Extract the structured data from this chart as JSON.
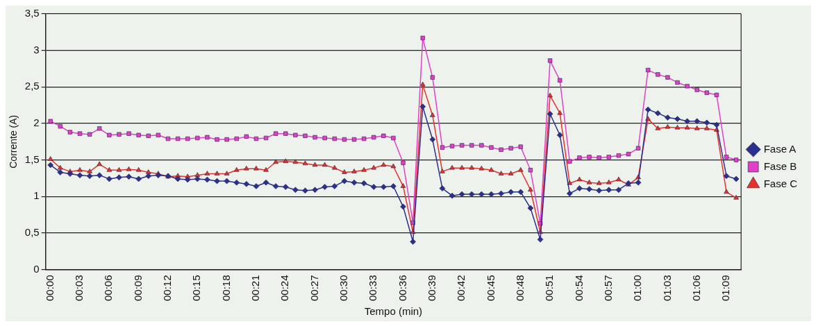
{
  "chart_data": {
    "type": "line",
    "xlabel": "Tempo (min)",
    "ylabel": "Corrente (A)",
    "categories": [
      "00:00",
      null,
      null,
      "00:03",
      null,
      null,
      "00:06",
      null,
      null,
      "00:09",
      null,
      null,
      "00:12",
      null,
      null,
      "00:15",
      null,
      null,
      "00:18",
      null,
      null,
      "00:21",
      null,
      null,
      "00:24",
      null,
      null,
      "00:27",
      null,
      null,
      "00:30",
      null,
      null,
      "00:33",
      null,
      null,
      "00:36",
      null,
      null,
      "00:39",
      null,
      null,
      "00:42",
      null,
      null,
      "00:45",
      null,
      null,
      "00:48",
      null,
      null,
      "00:51",
      null,
      null,
      "00:54",
      null,
      null,
      "00:57",
      null,
      null,
      "01:00",
      null,
      null,
      "01:03",
      null,
      null,
      "01:06",
      null,
      null,
      "01:09",
      null
    ],
    "series": [
      {
        "name": "Fase A",
        "color": "#2b2f8f",
        "marker": "diamond",
        "values": [
          1.43,
          1.33,
          1.31,
          1.29,
          1.28,
          1.29,
          1.24,
          1.26,
          1.27,
          1.24,
          1.28,
          1.29,
          1.28,
          1.24,
          1.23,
          1.24,
          1.23,
          1.21,
          1.21,
          1.19,
          1.17,
          1.14,
          1.19,
          1.14,
          1.13,
          1.09,
          1.08,
          1.09,
          1.13,
          1.14,
          1.21,
          1.19,
          1.18,
          1.13,
          1.13,
          1.14,
          0.86,
          0.38,
          2.23,
          1.78,
          1.11,
          1.01,
          1.03,
          1.03,
          1.03,
          1.03,
          1.04,
          1.06,
          1.06,
          0.84,
          0.41,
          2.13,
          1.84,
          1.04,
          1.11,
          1.1,
          1.08,
          1.09,
          1.09,
          1.18,
          1.19,
          2.19,
          2.14,
          2.08,
          2.06,
          2.03,
          2.03,
          2.01,
          1.98,
          1.28,
          1.24
        ]
      },
      {
        "name": "Fase B",
        "color": "#e040c8",
        "marker": "square",
        "values": [
          2.03,
          1.96,
          1.88,
          1.86,
          1.85,
          1.93,
          1.84,
          1.85,
          1.86,
          1.84,
          1.83,
          1.84,
          1.79,
          1.79,
          1.79,
          1.8,
          1.81,
          1.78,
          1.78,
          1.79,
          1.82,
          1.79,
          1.8,
          1.86,
          1.86,
          1.84,
          1.83,
          1.81,
          1.8,
          1.79,
          1.78,
          1.78,
          1.79,
          1.81,
          1.83,
          1.8,
          1.46,
          0.64,
          3.17,
          2.63,
          1.67,
          1.69,
          1.7,
          1.7,
          1.7,
          1.67,
          1.64,
          1.66,
          1.68,
          1.36,
          0.63,
          2.86,
          2.59,
          1.48,
          1.53,
          1.54,
          1.53,
          1.54,
          1.56,
          1.58,
          1.66,
          2.73,
          2.67,
          2.63,
          2.56,
          2.51,
          2.46,
          2.42,
          2.39,
          1.54,
          1.5
        ]
      },
      {
        "name": "Fase C",
        "color": "#e8302a",
        "marker": "triangle",
        "values": [
          1.51,
          1.39,
          1.34,
          1.36,
          1.34,
          1.44,
          1.36,
          1.36,
          1.37,
          1.36,
          1.33,
          1.31,
          1.27,
          1.28,
          1.27,
          1.29,
          1.31,
          1.31,
          1.31,
          1.36,
          1.38,
          1.38,
          1.36,
          1.47,
          1.48,
          1.47,
          1.45,
          1.43,
          1.43,
          1.39,
          1.33,
          1.34,
          1.36,
          1.39,
          1.43,
          1.41,
          1.14,
          0.51,
          2.53,
          2.11,
          1.34,
          1.39,
          1.39,
          1.39,
          1.38,
          1.36,
          1.31,
          1.31,
          1.36,
          1.09,
          0.51,
          2.38,
          2.14,
          1.18,
          1.23,
          1.19,
          1.18,
          1.19,
          1.23,
          1.16,
          1.26,
          2.06,
          1.93,
          1.95,
          1.94,
          1.94,
          1.93,
          1.93,
          1.91,
          1.06,
          0.98
        ]
      }
    ],
    "ylim": [
      0,
      3.5
    ],
    "yticks": [
      0,
      {
        "value": 0.5,
        "label": "0,5"
      },
      1,
      {
        "value": 1.5,
        "label": "1,5"
      },
      2,
      {
        "value": 2.5,
        "label": "2,5"
      },
      3,
      {
        "value": 3.5,
        "label": "3,5"
      }
    ],
    "grid": "y",
    "legend": "right",
    "line_style": "solid"
  }
}
